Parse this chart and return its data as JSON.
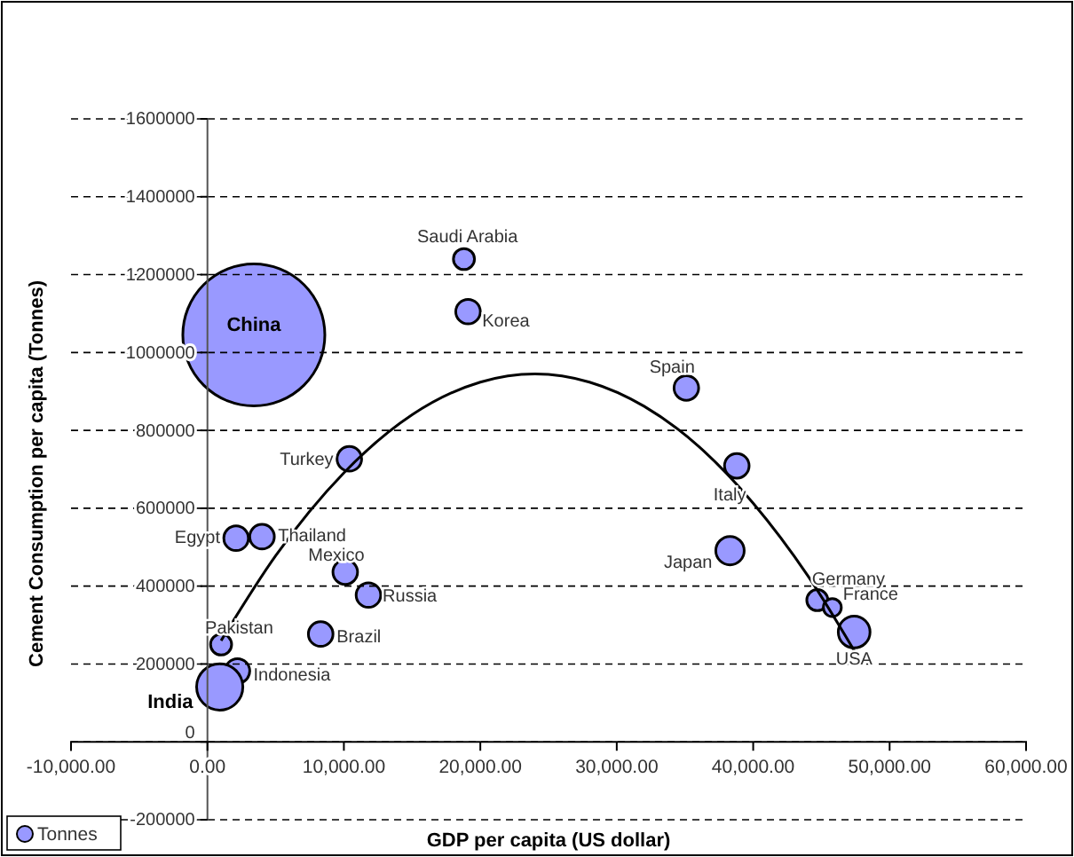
{
  "chart_data": {
    "type": "bubble",
    "xlabel": "GDP per capita (US dollar)",
    "ylabel": "Cement Consumption per capita (Tonnes)",
    "xlim": [
      -10000,
      60000
    ],
    "xticks": [
      {
        "value": -10000,
        "label": "-10,000.00"
      },
      {
        "value": 0,
        "label": "0.00"
      },
      {
        "value": 10000,
        "label": "10,000.00"
      },
      {
        "value": 20000,
        "label": "20,000.00"
      },
      {
        "value": 30000,
        "label": "30,000.00"
      },
      {
        "value": 40000,
        "label": "40,000.00"
      },
      {
        "value": 50000,
        "label": "50,000.00"
      },
      {
        "value": 60000,
        "label": "60,000.00"
      }
    ],
    "ylim": [
      -200000,
      1600000
    ],
    "yticks": [
      -200000,
      0,
      200000,
      400000,
      600000,
      800000,
      1000000,
      1200000,
      1400000,
      1600000
    ],
    "grid": "y",
    "legend": "bottom left",
    "series": [
      {
        "name": "Tonnes",
        "type": "bubble",
        "color": "#9999ff",
        "x": [
          3400,
          18800,
          19100,
          10400,
          35100,
          38800,
          38300,
          44700,
          45800,
          47400,
          2100,
          4000,
          10100,
          11800,
          8300,
          1000,
          2200,
          900
        ],
        "values": [
          1045000,
          1240000,
          1105000,
          727000,
          909000,
          709000,
          491000,
          364000,
          345000,
          282000,
          523000,
          527000,
          436000,
          377000,
          277000,
          250000,
          182000,
          141000
        ],
        "sizes": [
          1,
          0.022,
          0.03,
          0.03,
          0.03,
          0.03,
          0.04,
          0.022,
          0.016,
          0.05,
          0.03,
          0.03,
          0.03,
          0.03,
          0.03,
          0.022,
          0.03,
          0.106
        ]
      },
      {
        "type": "line",
        "color": "#000000",
        "x": [
          1000,
          5000,
          10000,
          15000,
          20000,
          24000,
          28000,
          32000,
          36000,
          40000,
          44000,
          48000
        ],
        "values": [
          260000,
          478000,
          691000,
          840000,
          924000,
          945000,
          924000,
          862000,
          759000,
          613000,
          427000,
          199000
        ]
      }
    ],
    "annotations": [
      {
        "text": "China",
        "x": 3400,
        "y": 1045000
      },
      {
        "text": "Saudi Arabia",
        "x": 18800,
        "y": 1240000
      },
      {
        "text": "Korea",
        "x": 19100,
        "y": 1105000
      },
      {
        "text": "Turkey",
        "x": 10400,
        "y": 727000
      },
      {
        "text": "Spain",
        "x": 35100,
        "y": 909000
      },
      {
        "text": "Italy",
        "x": 38800,
        "y": 709000
      },
      {
        "text": "Japan",
        "x": 38300,
        "y": 491000
      },
      {
        "text": "Germany",
        "x": 44700,
        "y": 364000
      },
      {
        "text": "France",
        "x": 45800,
        "y": 345000
      },
      {
        "text": "USA",
        "x": 47400,
        "y": 282000
      },
      {
        "text": "Egypt",
        "x": 2100,
        "y": 523000
      },
      {
        "text": "Thailand",
        "x": 4000,
        "y": 527000
      },
      {
        "text": "Mexico",
        "x": 10100,
        "y": 436000
      },
      {
        "text": "Russia",
        "x": 11800,
        "y": 377000
      },
      {
        "text": "Brazil",
        "x": 8300,
        "y": 277000
      },
      {
        "text": "Pakistan",
        "x": 1000,
        "y": 250000
      },
      {
        "text": "Indonesia",
        "x": 2200,
        "y": 182000
      },
      {
        "text": "India",
        "x": 900,
        "y": 141000
      }
    ]
  }
}
